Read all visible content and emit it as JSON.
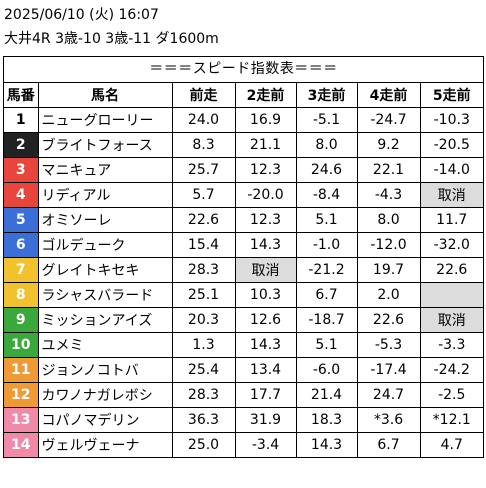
{
  "header": {
    "datetime": "2025/06/10 (火) 16:07",
    "race": "大井4R 3歳-10 3歳-11 ダ1600m"
  },
  "table": {
    "title": "＝＝＝スピード指数表＝＝＝",
    "columns": [
      "馬番",
      "馬名",
      "前走",
      "2走前",
      "3走前",
      "4走前",
      "5走前"
    ],
    "rows": [
      {
        "num": "1",
        "color": "#ffffff",
        "text_color": "#000000",
        "name": "ニューグローリー",
        "v": [
          "24.0",
          "16.9",
          "-5.1",
          "-24.7",
          "-10.3"
        ]
      },
      {
        "num": "2",
        "color": "#222222",
        "text_color": "#ffffff",
        "name": "ブライトフォース",
        "v": [
          "8.3",
          "21.1",
          "8.0",
          "9.2",
          "-20.5"
        ]
      },
      {
        "num": "3",
        "color": "#e8453c",
        "text_color": "#ffffff",
        "name": "マニキュア",
        "v": [
          "25.7",
          "12.3",
          "24.6",
          "22.1",
          "-14.0"
        ]
      },
      {
        "num": "4",
        "color": "#e8453c",
        "text_color": "#ffffff",
        "name": "リディアル",
        "v": [
          "5.7",
          "-20.0",
          "-8.4",
          "-4.3",
          "取消"
        ]
      },
      {
        "num": "5",
        "color": "#3b6fd8",
        "text_color": "#ffffff",
        "name": "オミソーレ",
        "v": [
          "22.6",
          "12.3",
          "5.1",
          "8.0",
          "11.7"
        ]
      },
      {
        "num": "6",
        "color": "#3b6fd8",
        "text_color": "#ffffff",
        "name": "ゴルデューク",
        "v": [
          "15.4",
          "14.3",
          "-1.0",
          "-12.0",
          "-32.0"
        ]
      },
      {
        "num": "7",
        "color": "#f2c12e",
        "text_color": "#ffffff",
        "name": "グレイトキセキ",
        "v": [
          "28.3",
          "取消",
          "-21.2",
          "19.7",
          "22.6"
        ]
      },
      {
        "num": "8",
        "color": "#f2c12e",
        "text_color": "#ffffff",
        "name": "ラシャスバラード",
        "v": [
          "25.1",
          "10.3",
          "6.7",
          "2.0",
          ""
        ]
      },
      {
        "num": "9",
        "color": "#3aa83a",
        "text_color": "#ffffff",
        "name": "ミッションアイズ",
        "v": [
          "20.3",
          "12.6",
          "-18.7",
          "22.6",
          "取消"
        ]
      },
      {
        "num": "10",
        "color": "#3aa83a",
        "text_color": "#ffffff",
        "name": "ユメミ",
        "v": [
          "1.3",
          "14.3",
          "5.1",
          "-5.3",
          "-3.3"
        ]
      },
      {
        "num": "11",
        "color": "#ef9a35",
        "text_color": "#ffffff",
        "name": "ジョンノコトバ",
        "v": [
          "25.4",
          "13.4",
          "-6.0",
          "-17.4",
          "-24.2"
        ]
      },
      {
        "num": "12",
        "color": "#ef9a35",
        "text_color": "#ffffff",
        "name": "カワノナガレボシ",
        "v": [
          "28.3",
          "17.7",
          "21.4",
          "24.7",
          "-2.5"
        ]
      },
      {
        "num": "13",
        "color": "#f08aa8",
        "text_color": "#ffffff",
        "name": "コパノマデリン",
        "v": [
          "36.3",
          "31.9",
          "18.3",
          "*3.6",
          "*12.1"
        ]
      },
      {
        "num": "14",
        "color": "#f08aa8",
        "text_color": "#ffffff",
        "name": "ヴェルヴェーナ",
        "v": [
          "25.0",
          "-3.4",
          "14.3",
          "6.7",
          "4.7"
        ]
      }
    ]
  }
}
